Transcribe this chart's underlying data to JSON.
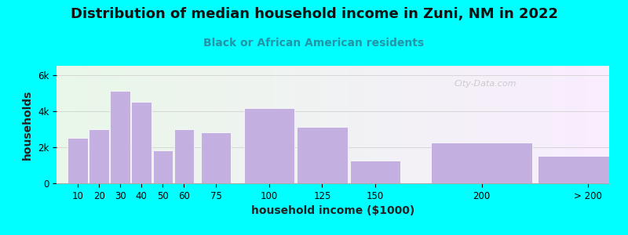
{
  "title": "Distribution of median household income in Zuni, NM in 2022",
  "subtitle": "Black or African American residents",
  "xlabel": "household income ($1000)",
  "ylabel": "households",
  "bar_color": "#c4b0e0",
  "background_color": "#00ffff",
  "categories": [
    "10",
    "20",
    "30",
    "40",
    "50",
    "60",
    "75",
    "100",
    "125",
    "150",
    "200",
    "> 200"
  ],
  "values": [
    2500,
    3000,
    5100,
    4500,
    1800,
    3000,
    2800,
    4150,
    3100,
    1250,
    2250,
    1500
  ],
  "ylim": [
    0,
    6500
  ],
  "yticks": [
    0,
    2000,
    4000,
    6000
  ],
  "ytick_labels": [
    "0",
    "2k",
    "4k",
    "6k"
  ],
  "title_fontsize": 13,
  "subtitle_fontsize": 10,
  "axis_label_fontsize": 10,
  "watermark_text": "City-Data.com",
  "left_edges": [
    5,
    15,
    25,
    35,
    45,
    55,
    67.5,
    87.5,
    112.5,
    137.5,
    175,
    225
  ],
  "widths": [
    10,
    10,
    10,
    10,
    10,
    10,
    15,
    25,
    25,
    25,
    50,
    50
  ]
}
